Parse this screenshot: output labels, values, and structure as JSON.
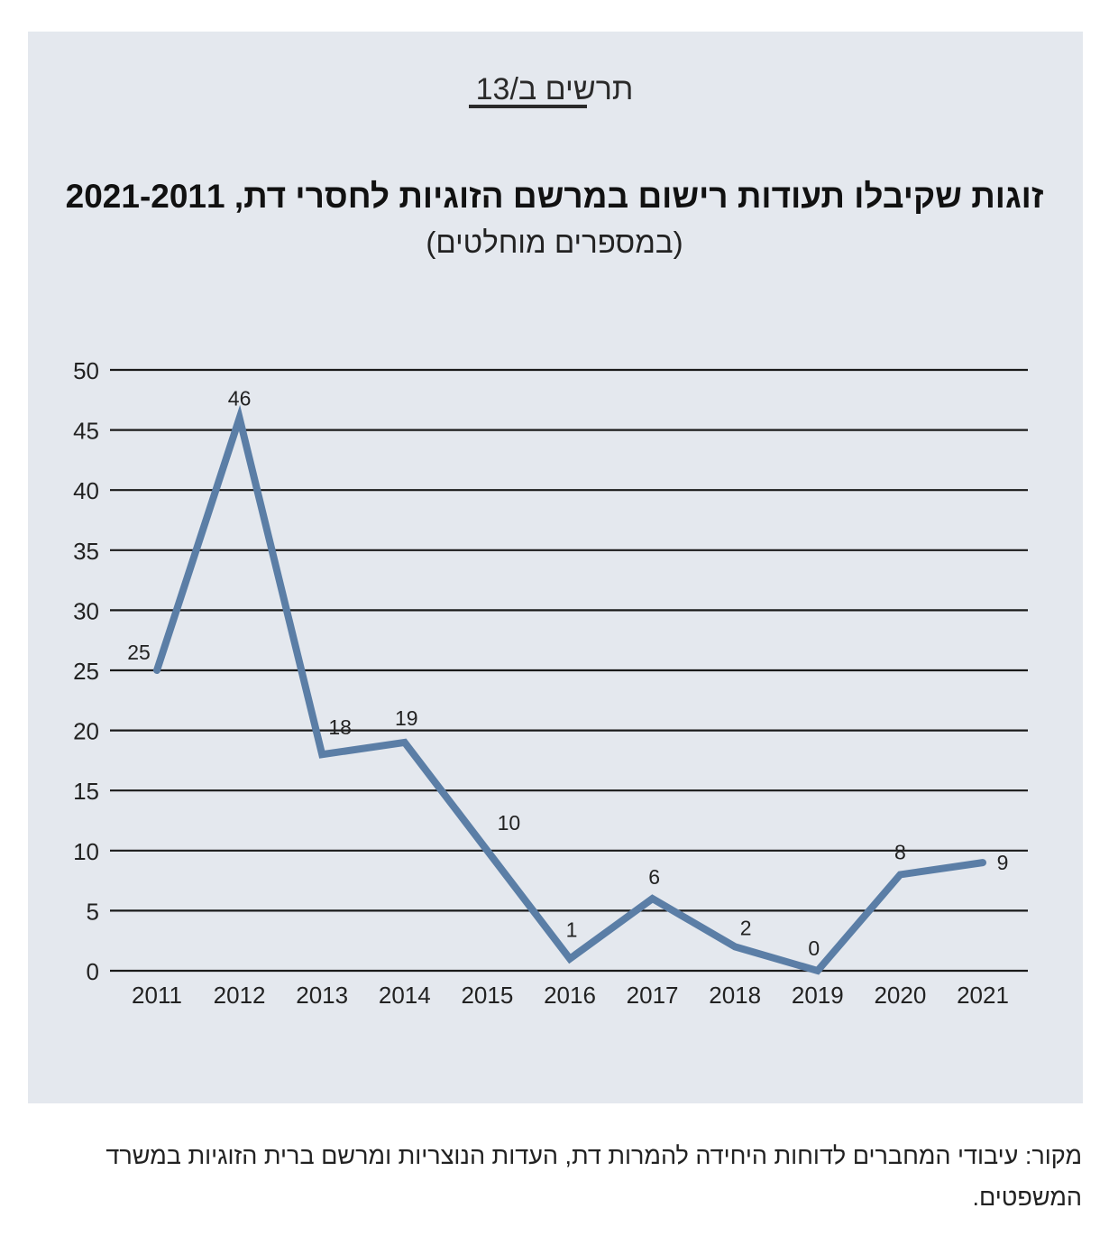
{
  "figure_label": "תרשים ב/13",
  "chart_data": {
    "type": "line",
    "title": "זוגות שקיבלו תעודות רישום במרשם הזוגיות לחסרי דת, 2021-2011",
    "subtitle": "(במספרים מוחלטים)",
    "xlabel": "",
    "ylabel": "",
    "categories": [
      "2011",
      "2012",
      "2013",
      "2014",
      "2015",
      "2016",
      "2017",
      "2018",
      "2019",
      "2020",
      "2021"
    ],
    "series": [
      {
        "values": [
          25,
          46,
          18,
          19,
          10,
          1,
          6,
          2,
          0,
          8,
          9
        ]
      }
    ],
    "yticks": [
      0,
      5,
      10,
      15,
      20,
      25,
      30,
      35,
      40,
      45,
      50
    ],
    "ylim": [
      0,
      50
    ],
    "grid": true,
    "line_color": "#5b7ea6",
    "grid_color": "#1a1a1a"
  },
  "source_note": "מקור: עיבודי המחברים לדוחות היחידה להמרות דת, העדות הנוצריות ומרשם ברית הזוגיות במשרד המשפטים."
}
